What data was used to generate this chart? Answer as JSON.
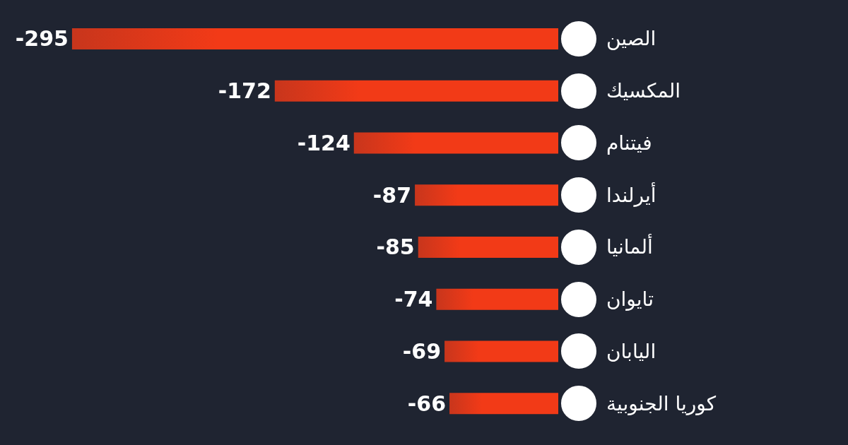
{
  "chart_data": {
    "type": "bar",
    "orientation": "horizontal",
    "categories": [
      "الصين",
      "المكسيك",
      "فيتنام",
      "أيرلندا",
      "ألمانيا",
      "تايوان",
      "اليابان",
      "كوريا الجنوبية"
    ],
    "values": [
      -295,
      -172,
      -124,
      -87,
      -85,
      -74,
      -69,
      -66
    ],
    "color": "#f23a17",
    "data_labels": true
  }
}
